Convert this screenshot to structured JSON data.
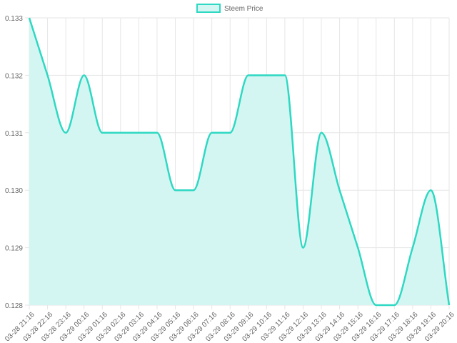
{
  "chart_data": {
    "type": "area",
    "title": "",
    "xlabel": "",
    "ylabel": "",
    "legend_position": "top-center",
    "grid": true,
    "ylim": [
      0.128,
      0.133
    ],
    "y_ticks": [
      "0.133",
      "0.132",
      "0.131",
      "0.130",
      "0.129",
      "0.128"
    ],
    "categories": [
      "03-28 21:16",
      "03-28 22:16",
      "03-28 23:16",
      "03-29 00:16",
      "03-29 01:16",
      "03-29 02:16",
      "03-29 03:16",
      "03-29 04:16",
      "03-29 05:16",
      "03-29 06:16",
      "03-29 07:16",
      "03-29 08:16",
      "03-29 09:16",
      "03-29 10:16",
      "03-29 11:16",
      "03-29 12:16",
      "03-29 13:16",
      "03-29 14:16",
      "03-29 15:16",
      "03-29 16:16",
      "03-29 17:16",
      "03-29 18:16",
      "03-29 19:16",
      "03-29 20:16"
    ],
    "series": [
      {
        "name": "Steem Price",
        "line_color": "#2ed8c3",
        "fill_color": "#d4f6f2",
        "values": [
          0.133,
          0.132,
          0.131,
          0.132,
          0.131,
          0.131,
          0.131,
          0.131,
          0.13,
          0.13,
          0.131,
          0.131,
          0.132,
          0.132,
          0.132,
          0.129,
          0.131,
          0.13,
          0.129,
          0.128,
          0.128,
          0.129,
          0.13,
          0.128
        ]
      }
    ]
  }
}
